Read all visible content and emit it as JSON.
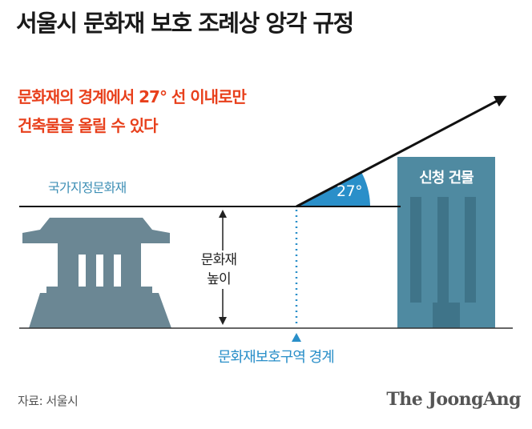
{
  "title": "서울시 문화재 보호 조례상 앙각 규정",
  "subtitle": {
    "line1": "문화재의 경계에서 27° 선 이내로만",
    "line2": "건축물을 올릴 수 있다"
  },
  "labels": {
    "heritage": "국가지정문화재",
    "height_line1": "문화재",
    "height_line2": "높이",
    "boundary": "문화재보호구역 경계",
    "building": "신청 건물",
    "angle": "27°"
  },
  "footer": {
    "source": "자료: 서울시",
    "brand": "The JoongAng"
  },
  "colors": {
    "title": "#1a1a1a",
    "accent_red": "#e8401c",
    "heritage_label": "#3e8fb5",
    "boundary_label": "#2a8fc9",
    "angle_fill": "#2a8fc9",
    "structure_gray": "#6b8794",
    "building_blue": "#4f8aa1"
  }
}
